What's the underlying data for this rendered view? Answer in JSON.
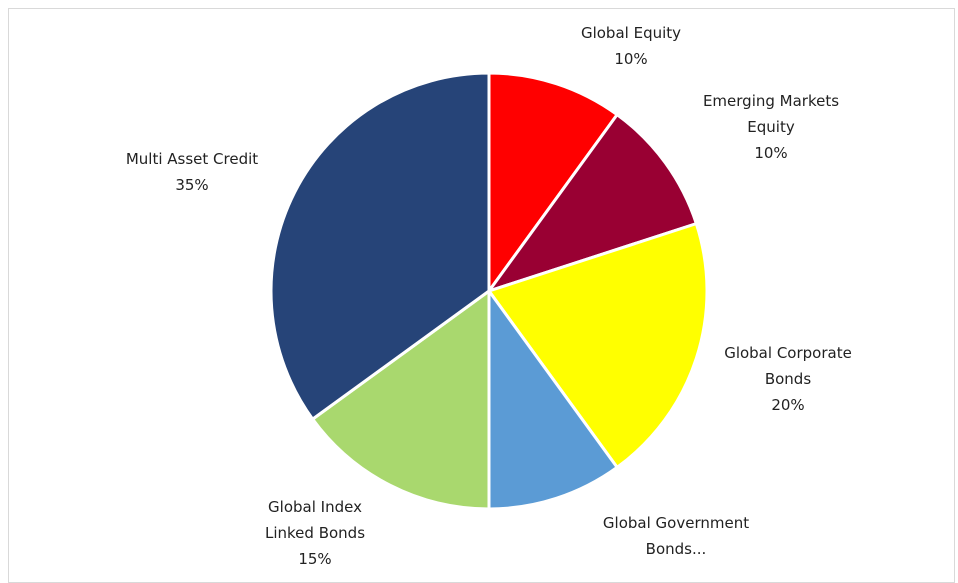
{
  "chart_data": {
    "type": "pie",
    "start_angle_deg": 0,
    "direction": "clockwise",
    "slices": [
      {
        "label_lines": [
          "Global Equity"
        ],
        "value": 10,
        "value_label": "10%",
        "color": "#ff0000"
      },
      {
        "label_lines": [
          "Emerging Markets",
          "Equity"
        ],
        "value": 10,
        "value_label": "10%",
        "color": "#990033"
      },
      {
        "label_lines": [
          "Global Corporate",
          "Bonds"
        ],
        "value": 20,
        "value_label": "20%",
        "color": "#ffff00"
      },
      {
        "label_lines": [
          "Global Government",
          "Bonds..."
        ],
        "value": 10,
        "value_label": "",
        "color": "#5b9bd5"
      },
      {
        "label_lines": [
          "Global Index",
          "Linked Bonds"
        ],
        "value": 15,
        "value_label": "15%",
        "color": "#a9d86e"
      },
      {
        "label_lines": [
          "Multi Asset Credit"
        ],
        "value": 35,
        "value_label": "35%",
        "color": "#264478"
      }
    ],
    "legend": "none"
  }
}
